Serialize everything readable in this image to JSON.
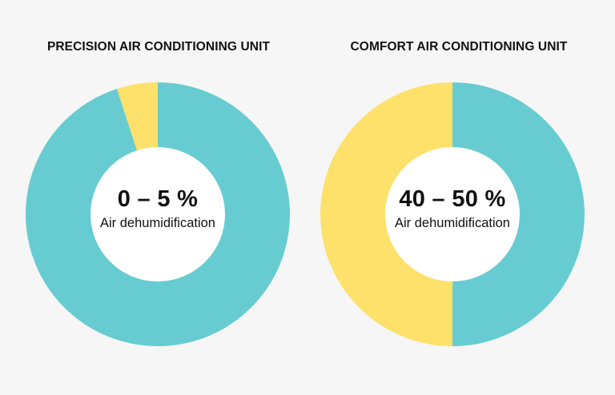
{
  "colors": {
    "primary": "#67ccd2",
    "secondary": "#fde16b",
    "hole": "#ffffff",
    "background": "#f6f6f6"
  },
  "chart_data": [
    {
      "type": "pie",
      "title": "PRECISION AIR CONDITIONING UNIT",
      "center_value": "0 – 5 %",
      "center_caption": "Air dehumidification",
      "slices": [
        {
          "value": 95,
          "color": "#67ccd2"
        },
        {
          "value": 5,
          "color": "#fde16b"
        }
      ]
    },
    {
      "type": "pie",
      "title": "COMFORT AIR CONDITIONING UNIT",
      "center_value": "40 – 50 %",
      "center_caption": "Air dehumidification",
      "slices": [
        {
          "value": 50,
          "color": "#67ccd2"
        },
        {
          "value": 50,
          "color": "#fde16b"
        }
      ]
    }
  ]
}
